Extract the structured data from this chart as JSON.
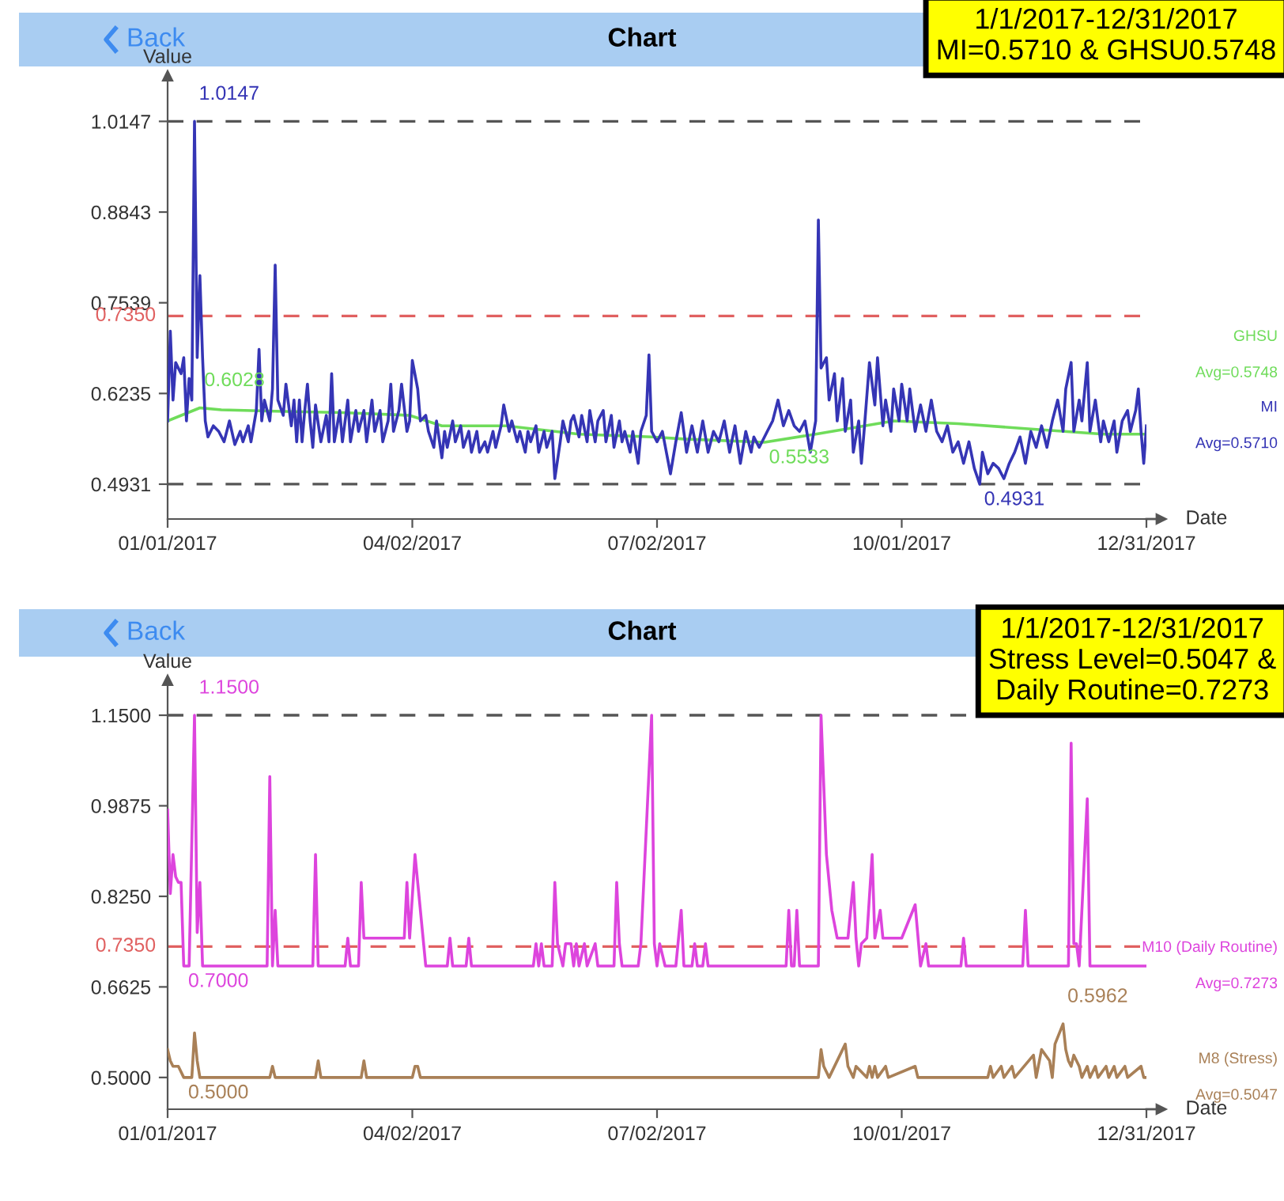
{
  "chart_data": [
    {
      "type": "line",
      "title": "Chart",
      "xlabel": "Date",
      "ylabel": "Value",
      "legend": false,
      "grid": false,
      "xlim": [
        "2017-01-01",
        "2017-12-31"
      ],
      "xticks": [
        {
          "value": "2017-01-01",
          "label": "01/01/2017"
        },
        {
          "value": "2017-04-02",
          "label": "04/02/2017"
        },
        {
          "value": "2017-07-02",
          "label": "07/02/2017"
        },
        {
          "value": "2017-10-01",
          "label": "10/01/2017"
        },
        {
          "value": "2017-12-31",
          "label": "12/31/2017"
        }
      ],
      "ylim": [
        0.443,
        1.08
      ],
      "yticks": [
        0.4931,
        0.6235,
        0.7539,
        0.8843,
        1.0147
      ],
      "ref_lines": [
        {
          "axis": "y",
          "value": 1.0147,
          "color": "#555555",
          "line_style": "dashed"
        },
        {
          "axis": "y",
          "value": 0.735,
          "label": "0.7350",
          "color": "#e06060",
          "line_style": "dashed"
        },
        {
          "axis": "y",
          "value": 0.4931,
          "color": "#555555",
          "line_style": "dashed"
        }
      ],
      "series": [
        {
          "name": "GHSU",
          "color": "#6fdc5a",
          "x": [
            "2017-01-01",
            "2017-01-13",
            "2017-01-21",
            "2017-02-10",
            "2017-03-07",
            "2017-04-01",
            "2017-04-13",
            "2017-05-07",
            "2017-06-03",
            "2017-06-30",
            "2017-07-12",
            "2017-08-11",
            "2017-08-30",
            "2017-09-28",
            "2017-10-22",
            "2017-11-16",
            "2017-12-15",
            "2017-12-31"
          ],
          "values": [
            0.584,
            0.6028,
            0.6,
            0.598,
            0.596,
            0.592,
            0.577,
            0.577,
            0.565,
            0.561,
            0.558,
            0.5533,
            0.565,
            0.584,
            0.58,
            0.573,
            0.565,
            0.565
          ]
        },
        {
          "name": "MI",
          "color": "#3535b5",
          "x": [
            "2017-01-01",
            "2017-01-02",
            "2017-01-03",
            "2017-01-04",
            "2017-01-06",
            "2017-01-07",
            "2017-01-08",
            "2017-01-09",
            "2017-01-10",
            "2017-01-11",
            "2017-01-12",
            "2017-01-13",
            "2017-01-14",
            "2017-01-15",
            "2017-01-16",
            "2017-01-18",
            "2017-01-20",
            "2017-01-22",
            "2017-01-24",
            "2017-01-26",
            "2017-01-28",
            "2017-01-29",
            "2017-01-31",
            "2017-02-01",
            "2017-02-03",
            "2017-02-04",
            "2017-02-05",
            "2017-02-06",
            "2017-02-08",
            "2017-02-09",
            "2017-02-10",
            "2017-02-11",
            "2017-02-13",
            "2017-02-14",
            "2017-02-16",
            "2017-02-17",
            "2017-02-18",
            "2017-02-19",
            "2017-02-20",
            "2017-02-21",
            "2017-02-22",
            "2017-02-23",
            "2017-02-24",
            "2017-02-25",
            "2017-02-27",
            "2017-03-01",
            "2017-03-02",
            "2017-03-03",
            "2017-03-04",
            "2017-03-06",
            "2017-03-07",
            "2017-03-09",
            "2017-03-10",
            "2017-03-12",
            "2017-03-13",
            "2017-03-15",
            "2017-03-16",
            "2017-03-18",
            "2017-03-19",
            "2017-03-21",
            "2017-03-22",
            "2017-03-24",
            "2017-03-25",
            "2017-03-26",
            "2017-03-28",
            "2017-03-29",
            "2017-03-31",
            "2017-04-01",
            "2017-04-02",
            "2017-04-04",
            "2017-04-05",
            "2017-04-07",
            "2017-04-08",
            "2017-04-10",
            "2017-04-11",
            "2017-04-13",
            "2017-04-14",
            "2017-04-15",
            "2017-04-17",
            "2017-04-18",
            "2017-04-20",
            "2017-04-21",
            "2017-04-23",
            "2017-04-24",
            "2017-04-26",
            "2017-04-27",
            "2017-04-29",
            "2017-04-30",
            "2017-05-02",
            "2017-05-03",
            "2017-05-05",
            "2017-05-06",
            "2017-05-08",
            "2017-05-09",
            "2017-05-11",
            "2017-05-12",
            "2017-05-14",
            "2017-05-15",
            "2017-05-16",
            "2017-05-18",
            "2017-05-19",
            "2017-05-21",
            "2017-05-22",
            "2017-05-24",
            "2017-05-25",
            "2017-05-27",
            "2017-05-28",
            "2017-05-30",
            "2017-05-31",
            "2017-06-01",
            "2017-06-03",
            "2017-06-04",
            "2017-06-06",
            "2017-06-07",
            "2017-06-09",
            "2017-06-10",
            "2017-06-12",
            "2017-06-13",
            "2017-06-15",
            "2017-06-16",
            "2017-06-18",
            "2017-06-19",
            "2017-06-20",
            "2017-06-22",
            "2017-06-23",
            "2017-06-25",
            "2017-06-26",
            "2017-06-28",
            "2017-06-29",
            "2017-06-30",
            "2017-07-02",
            "2017-07-04",
            "2017-07-07",
            "2017-07-09",
            "2017-07-11",
            "2017-07-13",
            "2017-07-15",
            "2017-07-17",
            "2017-07-19",
            "2017-07-21",
            "2017-07-23",
            "2017-07-25",
            "2017-07-27",
            "2017-07-29",
            "2017-07-31",
            "2017-08-02",
            "2017-08-04",
            "2017-08-06",
            "2017-08-07",
            "2017-08-09",
            "2017-08-12",
            "2017-08-14",
            "2017-08-16",
            "2017-08-18",
            "2017-08-20",
            "2017-08-22",
            "2017-08-24",
            "2017-08-26",
            "2017-08-28",
            "2017-08-30",
            "2017-08-31",
            "2017-09-01",
            "2017-09-03",
            "2017-09-04",
            "2017-09-06",
            "2017-09-07",
            "2017-09-09",
            "2017-09-10",
            "2017-09-12",
            "2017-09-13",
            "2017-09-15",
            "2017-09-16",
            "2017-09-17",
            "2017-09-19",
            "2017-09-21",
            "2017-09-22",
            "2017-09-24",
            "2017-09-25",
            "2017-09-27",
            "2017-09-28",
            "2017-09-30",
            "2017-10-01",
            "2017-10-03",
            "2017-10-04",
            "2017-10-06",
            "2017-10-08",
            "2017-10-10",
            "2017-10-12",
            "2017-10-14",
            "2017-10-16",
            "2017-10-18",
            "2017-10-20",
            "2017-10-22",
            "2017-10-24",
            "2017-10-26",
            "2017-10-28",
            "2017-10-30",
            "2017-10-31",
            "2017-11-02",
            "2017-11-04",
            "2017-11-06",
            "2017-11-08",
            "2017-11-10",
            "2017-11-12",
            "2017-11-14",
            "2017-11-16",
            "2017-11-18",
            "2017-11-20",
            "2017-11-22",
            "2017-11-24",
            "2017-11-26",
            "2017-11-28",
            "2017-11-30",
            "2017-12-01",
            "2017-12-03",
            "2017-12-04",
            "2017-12-06",
            "2017-12-07",
            "2017-12-09",
            "2017-12-10",
            "2017-12-12",
            "2017-12-14",
            "2017-12-15",
            "2017-12-17",
            "2017-12-19",
            "2017-12-20",
            "2017-12-22",
            "2017-12-24",
            "2017-12-25",
            "2017-12-27",
            "2017-12-28",
            "2017-12-29",
            "2017-12-30",
            "2017-12-31"
          ],
          "values": [
            0.584,
            0.713,
            0.614,
            0.668,
            0.652,
            0.675,
            0.584,
            0.645,
            0.614,
            1.0147,
            0.675,
            0.793,
            0.675,
            0.584,
            0.561,
            0.577,
            0.569,
            0.554,
            0.584,
            0.55,
            0.569,
            0.554,
            0.577,
            0.554,
            0.599,
            0.687,
            0.584,
            0.614,
            0.584,
            0.63,
            0.808,
            0.614,
            0.592,
            0.637,
            0.577,
            0.614,
            0.554,
            0.614,
            0.554,
            0.599,
            0.637,
            0.584,
            0.546,
            0.607,
            0.554,
            0.592,
            0.554,
            0.652,
            0.554,
            0.599,
            0.554,
            0.614,
            0.554,
            0.599,
            0.569,
            0.599,
            0.554,
            0.614,
            0.569,
            0.599,
            0.554,
            0.584,
            0.637,
            0.569,
            0.599,
            0.637,
            0.569,
            0.584,
            0.671,
            0.63,
            0.584,
            0.592,
            0.569,
            0.546,
            0.584,
            0.531,
            0.569,
            0.546,
            0.584,
            0.554,
            0.577,
            0.546,
            0.569,
            0.539,
            0.569,
            0.539,
            0.554,
            0.539,
            0.569,
            0.546,
            0.577,
            0.607,
            0.569,
            0.584,
            0.554,
            0.569,
            0.539,
            0.569,
            0.554,
            0.577,
            0.539,
            0.569,
            0.546,
            0.569,
            0.501,
            0.554,
            0.584,
            0.554,
            0.584,
            0.592,
            0.561,
            0.592,
            0.554,
            0.599,
            0.554,
            0.584,
            0.599,
            0.554,
            0.592,
            0.546,
            0.584,
            0.554,
            0.569,
            0.539,
            0.569,
            0.523,
            0.569,
            0.592,
            0.679,
            0.569,
            0.554,
            0.569,
            0.508,
            0.554,
            0.596,
            0.539,
            0.577,
            0.539,
            0.584,
            0.539,
            0.569,
            0.554,
            0.584,
            0.539,
            0.577,
            0.523,
            0.569,
            0.539,
            0.561,
            0.546,
            0.569,
            0.584,
            0.614,
            0.577,
            0.599,
            0.577,
            0.569,
            0.584,
            0.539,
            0.584,
            0.873,
            0.66,
            0.675,
            0.614,
            0.652,
            0.584,
            0.645,
            0.569,
            0.614,
            0.539,
            0.584,
            0.523,
            0.569,
            0.668,
            0.607,
            0.675,
            0.577,
            0.614,
            0.569,
            0.63,
            0.584,
            0.637,
            0.584,
            0.63,
            0.569,
            0.607,
            0.569,
            0.614,
            0.569,
            0.554,
            0.577,
            0.539,
            0.554,
            0.523,
            0.554,
            0.516,
            0.4931,
            0.539,
            0.508,
            0.523,
            0.516,
            0.501,
            0.523,
            0.539,
            0.561,
            0.523,
            0.569,
            0.546,
            0.577,
            0.546,
            0.584,
            0.614,
            0.569,
            0.63,
            0.668,
            0.569,
            0.614,
            0.584,
            0.668,
            0.569,
            0.614,
            0.554,
            0.584,
            0.554,
            0.584,
            0.539,
            0.584,
            0.599,
            0.569,
            0.599,
            0.63,
            0.569,
            0.523,
            0.577
          ]
        }
      ],
      "annotations": [
        "Back",
        "1/1/2017-12/31/2017\nMI=0.5710 & GHSU0.5748",
        "Avg=0.5748",
        "Avg=0.5710",
        {
          "text": "1.0147",
          "x": "2017-01-11",
          "y": 1.0147
        },
        {
          "text": "0.6028",
          "x": "2017-01-13",
          "y": 0.6028
        },
        {
          "text": "0.5533",
          "x": "2017-08-11",
          "y": 0.5533
        },
        {
          "text": "0.4931",
          "x": "2017-10-30",
          "y": 0.4931
        }
      ]
    },
    {
      "type": "line",
      "title": "Chart",
      "xlabel": "Date",
      "ylabel": "Value",
      "legend": false,
      "grid": false,
      "xlim": [
        "2017-01-01",
        "2017-12-31"
      ],
      "xticks": [
        {
          "value": "2017-01-01",
          "label": "01/01/2017"
        },
        {
          "value": "2017-04-02",
          "label": "04/02/2017"
        },
        {
          "value": "2017-07-02",
          "label": "07/02/2017"
        },
        {
          "value": "2017-10-01",
          "label": "10/01/2017"
        },
        {
          "value": "2017-12-31",
          "label": "12/31/2017"
        }
      ],
      "ylim": [
        0.443,
        1.2125
      ],
      "yticks": [
        {
          "value": 0.5,
          "label": "0.5000"
        },
        0.6625,
        {
          "value": 0.825,
          "label": "0.8250"
        },
        0.9875,
        {
          "value": 1.15,
          "label": "1.1500"
        }
      ],
      "ref_lines": [
        {
          "axis": "y",
          "value": 1.15,
          "color": "#555555",
          "line_style": "dashed"
        },
        {
          "axis": "y",
          "value": 0.735,
          "label": "0.7350",
          "color": "#e06060",
          "line_style": "dashed"
        }
      ],
      "series": [
        {
          "name": "M10 (Daily Routine)",
          "color": "#dd44dd",
          "x": [
            "2017-01-01",
            "2017-01-02",
            "2017-01-03",
            "2017-01-04",
            "2017-01-05",
            "2017-01-06",
            "2017-01-07",
            "2017-01-09",
            "2017-01-11",
            "2017-01-12",
            "2017-01-13",
            "2017-01-14",
            "2017-02-07",
            "2017-02-08",
            "2017-02-09",
            "2017-02-10",
            "2017-02-11",
            "2017-02-24",
            "2017-02-25",
            "2017-02-26",
            "2017-03-08",
            "2017-03-09",
            "2017-03-10",
            "2017-03-13",
            "2017-03-14",
            "2017-03-15",
            "2017-03-30",
            "2017-03-31",
            "2017-04-01",
            "2017-04-03",
            "2017-04-05",
            "2017-04-07",
            "2017-04-15",
            "2017-04-16",
            "2017-04-17",
            "2017-04-22",
            "2017-04-23",
            "2017-04-24",
            "2017-05-17",
            "2017-05-18",
            "2017-05-19",
            "2017-05-20",
            "2017-05-21",
            "2017-05-24",
            "2017-05-25",
            "2017-05-26",
            "2017-05-28",
            "2017-05-29",
            "2017-05-31",
            "2017-06-01",
            "2017-06-02",
            "2017-06-03",
            "2017-06-05",
            "2017-06-06",
            "2017-06-09",
            "2017-06-10",
            "2017-06-16",
            "2017-06-17",
            "2017-06-18",
            "2017-06-19",
            "2017-06-25",
            "2017-06-26",
            "2017-06-30",
            "2017-07-01",
            "2017-07-02",
            "2017-07-03",
            "2017-07-05",
            "2017-07-09",
            "2017-07-11",
            "2017-07-12",
            "2017-07-15",
            "2017-07-16",
            "2017-07-17",
            "2017-07-19",
            "2017-07-20",
            "2017-07-21",
            "2017-08-19",
            "2017-08-20",
            "2017-08-21",
            "2017-08-22",
            "2017-08-23",
            "2017-08-24",
            "2017-08-31",
            "2017-09-01",
            "2017-09-03",
            "2017-09-05",
            "2017-09-07",
            "2017-09-11",
            "2017-09-13",
            "2017-09-14",
            "2017-09-15",
            "2017-09-16",
            "2017-09-18",
            "2017-09-20",
            "2017-09-21",
            "2017-09-23",
            "2017-09-24",
            "2017-10-01",
            "2017-10-06",
            "2017-10-08",
            "2017-10-10",
            "2017-10-11",
            "2017-10-23",
            "2017-10-24",
            "2017-10-25",
            "2017-11-15",
            "2017-11-16",
            "2017-11-17",
            "2017-12-02",
            "2017-12-03",
            "2017-12-04",
            "2017-12-05",
            "2017-12-06",
            "2017-12-09",
            "2017-12-10",
            "2017-12-31"
          ],
          "values": [
            0.98,
            0.83,
            0.9,
            0.86,
            0.85,
            0.85,
            0.7,
            0.7,
            1.15,
            0.76,
            0.85,
            0.7,
            0.7,
            1.04,
            0.7,
            0.8,
            0.7,
            0.7,
            0.9,
            0.7,
            0.7,
            0.75,
            0.7,
            0.7,
            0.85,
            0.75,
            0.75,
            0.85,
            0.75,
            0.9,
            0.8,
            0.7,
            0.7,
            0.75,
            0.7,
            0.7,
            0.75,
            0.7,
            0.7,
            0.74,
            0.7,
            0.74,
            0.7,
            0.7,
            0.85,
            0.74,
            0.7,
            0.74,
            0.74,
            0.7,
            0.74,
            0.7,
            0.74,
            0.7,
            0.74,
            0.7,
            0.7,
            0.85,
            0.74,
            0.7,
            0.7,
            0.74,
            1.15,
            0.74,
            0.7,
            0.74,
            0.7,
            0.7,
            0.8,
            0.7,
            0.7,
            0.74,
            0.7,
            0.7,
            0.74,
            0.7,
            0.7,
            0.8,
            0.7,
            0.7,
            0.8,
            0.7,
            0.7,
            1.15,
            0.9,
            0.8,
            0.75,
            0.75,
            0.85,
            0.75,
            0.7,
            0.74,
            0.75,
            0.9,
            0.75,
            0.8,
            0.75,
            0.75,
            0.81,
            0.7,
            0.74,
            0.7,
            0.7,
            0.75,
            0.7,
            0.7,
            0.8,
            0.7,
            0.7,
            1.1,
            0.74,
            0.74,
            0.7,
            1.0,
            0.7,
            0.7
          ]
        },
        {
          "name": "M8 (Stress)",
          "color": "#a98057",
          "x": [
            "2017-01-01",
            "2017-01-02",
            "2017-01-03",
            "2017-01-05",
            "2017-01-07",
            "2017-01-10",
            "2017-01-11",
            "2017-01-12",
            "2017-01-13",
            "2017-02-08",
            "2017-02-09",
            "2017-02-10",
            "2017-02-25",
            "2017-02-26",
            "2017-02-27",
            "2017-03-14",
            "2017-03-15",
            "2017-03-16",
            "2017-04-02",
            "2017-04-03",
            "2017-04-04",
            "2017-04-05",
            "2017-08-31",
            "2017-09-01",
            "2017-09-02",
            "2017-09-04",
            "2017-09-10",
            "2017-09-11",
            "2017-09-13",
            "2017-09-14",
            "2017-09-18",
            "2017-09-19",
            "2017-09-20",
            "2017-09-21",
            "2017-09-22",
            "2017-09-25",
            "2017-09-26",
            "2017-10-06",
            "2017-10-07",
            "2017-11-02",
            "2017-11-03",
            "2017-11-04",
            "2017-11-07",
            "2017-11-08",
            "2017-11-11",
            "2017-11-12",
            "2017-11-19",
            "2017-11-20",
            "2017-11-22",
            "2017-11-25",
            "2017-11-26",
            "2017-11-27",
            "2017-11-30",
            "2017-12-01",
            "2017-12-02",
            "2017-12-03",
            "2017-12-04",
            "2017-12-06",
            "2017-12-07",
            "2017-12-09",
            "2017-12-10",
            "2017-12-12",
            "2017-12-13",
            "2017-12-16",
            "2017-12-17",
            "2017-12-19",
            "2017-12-20",
            "2017-12-23",
            "2017-12-24",
            "2017-12-29",
            "2017-12-30",
            "2017-12-31"
          ],
          "values": [
            0.55,
            0.53,
            0.52,
            0.52,
            0.5,
            0.5,
            0.58,
            0.53,
            0.5,
            0.5,
            0.52,
            0.5,
            0.5,
            0.53,
            0.5,
            0.5,
            0.53,
            0.5,
            0.5,
            0.52,
            0.52,
            0.5,
            0.5,
            0.55,
            0.52,
            0.5,
            0.56,
            0.52,
            0.5,
            0.52,
            0.5,
            0.52,
            0.5,
            0.52,
            0.5,
            0.52,
            0.5,
            0.52,
            0.5,
            0.5,
            0.52,
            0.5,
            0.52,
            0.5,
            0.52,
            0.5,
            0.54,
            0.5,
            0.55,
            0.53,
            0.5,
            0.56,
            0.5962,
            0.55,
            0.53,
            0.52,
            0.54,
            0.52,
            0.5,
            0.52,
            0.5,
            0.52,
            0.5,
            0.52,
            0.5,
            0.52,
            0.5,
            0.52,
            0.5,
            0.52,
            0.5,
            0.5
          ]
        }
      ],
      "annotations": [
        "Back",
        "1/1/2017-12/31/2017\nStress Level=0.5047 &\nDaily Routine=0.7273",
        "Avg=0.7273",
        "Avg=0.5047",
        {
          "text": "1.1500",
          "x": "2017-01-11",
          "y": 1.15
        },
        {
          "text": "0.7000",
          "x": "2017-01-07",
          "y": 0.7
        },
        {
          "text": "0.5962",
          "x": "2017-11-30",
          "y": 0.5962
        },
        {
          "text": "0.5000",
          "x": "2017-01-07",
          "y": 0.5
        }
      ]
    }
  ]
}
